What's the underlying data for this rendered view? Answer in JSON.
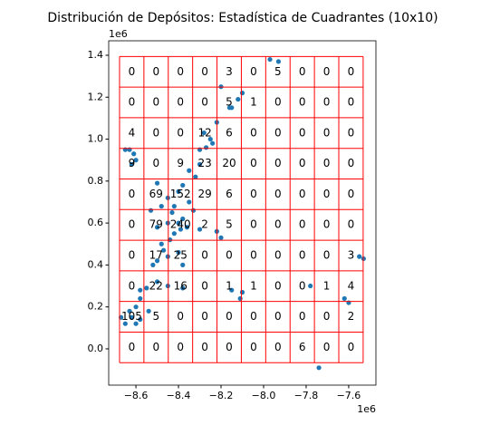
{
  "chart_data": {
    "type": "scatter",
    "title": "Distribución de Depósitos: Estadística de Cuadrantes (10x10)",
    "x_offset_label": "1e6",
    "y_offset_label": "1e6",
    "xlim": [
      -8.728,
      -7.472
    ],
    "ylim": [
      -0.173,
      1.469
    ],
    "xticks": [
      {
        "value": -8.6,
        "label": "−8.6"
      },
      {
        "value": -8.4,
        "label": "−8.4"
      },
      {
        "value": -8.2,
        "label": "−8.2"
      },
      {
        "value": -8.0,
        "label": "−8.0"
      },
      {
        "value": -7.8,
        "label": "−7.8"
      },
      {
        "value": -7.6,
        "label": "−7.6"
      }
    ],
    "yticks": [
      {
        "value": 0,
        "label": "0.0"
      },
      0.2,
      0.4,
      0.6,
      0.8,
      {
        "value": 1,
        "label": "1.0"
      },
      1.2,
      1.4
    ],
    "color": "#1f77b4",
    "x": [
      -7.97,
      -7.93,
      -8.1,
      -8.12,
      -8.2,
      -8.15,
      -8.16,
      -8.22,
      -8.25,
      -8.27,
      -8.24,
      -8.3,
      -8.28,
      -8.63,
      -8.61,
      -8.65,
      -8.6,
      -8.62,
      -8.35,
      -8.32,
      -8.3,
      -8.38,
      -8.4,
      -8.45,
      -8.5,
      -8.48,
      -8.43,
      -8.4,
      -8.38,
      -8.36,
      -8.42,
      -8.45,
      -8.35,
      -8.33,
      -8.42,
      -8.39,
      -8.44,
      -8.3,
      -8.22,
      -8.2,
      -8.5,
      -8.53,
      -8.47,
      -8.4,
      -8.45,
      -8.5,
      -8.48,
      -8.52,
      -8.38,
      -8.58,
      -8.55,
      -8.5,
      -8.45,
      -8.38,
      -8.15,
      -8.1,
      -8.11,
      -8.58,
      -8.6,
      -8.67,
      -8.65,
      -8.62,
      -8.63,
      -8.6,
      -8.58,
      -8.54,
      -7.55,
      -7.53,
      -7.78,
      -7.62,
      -7.6,
      -7.74
    ],
    "y": [
      1.38,
      1.37,
      1.22,
      1.19,
      1.25,
      1.15,
      1.15,
      1.08,
      1.0,
      0.96,
      0.98,
      0.95,
      1.03,
      0.95,
      0.93,
      0.95,
      0.9,
      0.88,
      0.85,
      0.82,
      0.88,
      0.78,
      0.75,
      0.72,
      0.79,
      0.68,
      0.65,
      0.6,
      0.62,
      0.58,
      0.55,
      0.6,
      0.7,
      0.66,
      0.68,
      0.57,
      0.52,
      0.57,
      0.56,
      0.53,
      0.58,
      0.66,
      0.47,
      0.46,
      0.44,
      0.42,
      0.5,
      0.4,
      0.4,
      0.28,
      0.29,
      0.32,
      0.3,
      0.29,
      0.28,
      0.27,
      0.24,
      0.24,
      0.2,
      0.15,
      0.12,
      0.15,
      0.18,
      0.12,
      0.14,
      0.18,
      0.44,
      0.43,
      0.3,
      0.24,
      0.22,
      -0.09
    ],
    "quadrat_color": "#ff0000",
    "quadrat_x_edges": [
      -8.677,
      -8.5625,
      -8.448,
      -8.3335,
      -8.219,
      -8.1045,
      -7.99,
      -7.8755,
      -7.761,
      -7.6465,
      -7.532
    ],
    "quadrat_y_edges": [
      1.394,
      1.248,
      1.102,
      0.956,
      0.81,
      0.664,
      0.518,
      0.372,
      0.226,
      0.08,
      -0.066
    ],
    "counts": [
      [
        0,
        0,
        0,
        0,
        3,
        0,
        5,
        0,
        0,
        0
      ],
      [
        0,
        0,
        0,
        0,
        5,
        1,
        0,
        0,
        0,
        0
      ],
      [
        4,
        0,
        0,
        12,
        6,
        0,
        0,
        0,
        0,
        0
      ],
      [
        9,
        0,
        9,
        23,
        20,
        0,
        0,
        0,
        0,
        0
      ],
      [
        0,
        69,
        152,
        29,
        6,
        0,
        0,
        0,
        0,
        0
      ],
      [
        0,
        79,
        240,
        2,
        5,
        0,
        0,
        0,
        0,
        0
      ],
      [
        0,
        17,
        25,
        0,
        0,
        0,
        0,
        0,
        0,
        3
      ],
      [
        0,
        22,
        16,
        0,
        1,
        1,
        0,
        0,
        1,
        4
      ],
      [
        105,
        5,
        0,
        0,
        0,
        0,
        0,
        0,
        0,
        2
      ],
      [
        0,
        0,
        0,
        0,
        0,
        0,
        0,
        6,
        0,
        0
      ]
    ]
  }
}
